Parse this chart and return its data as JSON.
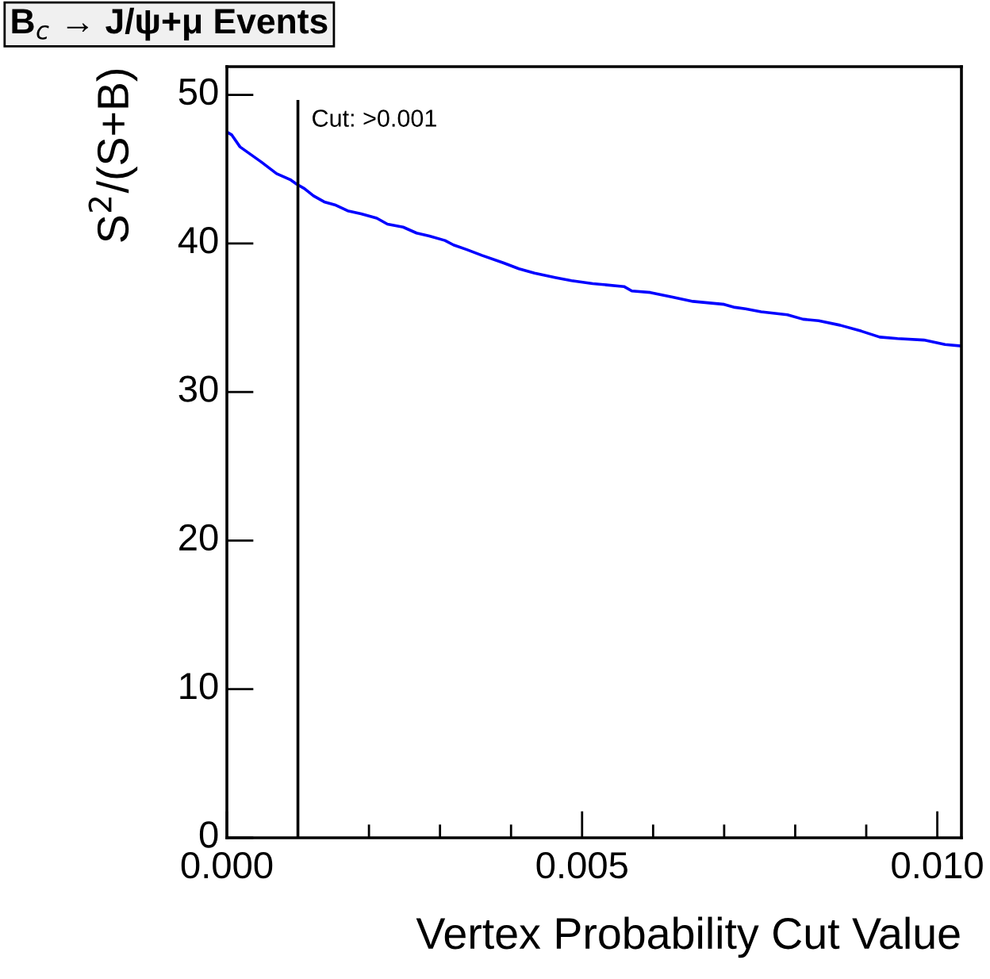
{
  "chart_data": {
    "type": "line",
    "title": "B$_{c}$ → J/ψ+μ Events",
    "xlabel": "Vertex Probability Cut Value",
    "ylabel": "S$^{2}$/(S+B)",
    "x": [
      0,
      7e-05,
      0.000185,
      0.00048,
      0.0007,
      0.00089,
      0.00098,
      0.00109,
      0.00122,
      0.00137,
      0.00152,
      0.0017,
      0.00189,
      0.00211,
      0.00226,
      0.00248,
      0.00267,
      0.00285,
      0.00307,
      0.00319,
      0.00337,
      0.00359,
      0.00389,
      0.00411,
      0.00433,
      0.00463,
      0.00485,
      0.00515,
      0.00559,
      0.0057,
      0.00596,
      0.00626,
      0.00656,
      0.007,
      0.00715,
      0.0073,
      0.00752,
      0.00789,
      0.00811,
      0.00833,
      0.00863,
      0.00893,
      0.00919,
      0.00944,
      0.00981,
      0.01011,
      0.01033
    ],
    "series": [
      {
        "color": "#0000ff",
        "values": [
          47.5,
          47.3,
          46.5,
          45.5,
          44.7,
          44.3,
          44.0,
          43.7,
          43.2,
          42.8,
          42.6,
          42.2,
          42.0,
          41.7,
          41.3,
          41.1,
          40.7,
          40.5,
          40.2,
          39.9,
          39.6,
          39.2,
          38.7,
          38.3,
          38.0,
          37.7,
          37.5,
          37.3,
          37.1,
          36.8,
          36.7,
          36.4,
          36.1,
          35.9,
          35.7,
          35.6,
          35.4,
          35.2,
          34.9,
          34.8,
          34.5,
          34.1,
          33.7,
          33.6,
          33.5,
          33.2,
          33.1
        ]
      }
    ],
    "xlim": [
      0,
      0.01034
    ],
    "ylim": [
      0,
      51.9
    ],
    "xticks": [
      {
        "value": 0,
        "label": "0.000"
      },
      0.005,
      {
        "value": 0.01,
        "label": "0.010"
      }
    ],
    "yticks": [
      0,
      10,
      20,
      30,
      40,
      50
    ],
    "ref_lines": [
      {
        "axis": "x",
        "value": 0.001,
        "label": "Cut: >0.001",
        "color": "#000000"
      }
    ]
  }
}
